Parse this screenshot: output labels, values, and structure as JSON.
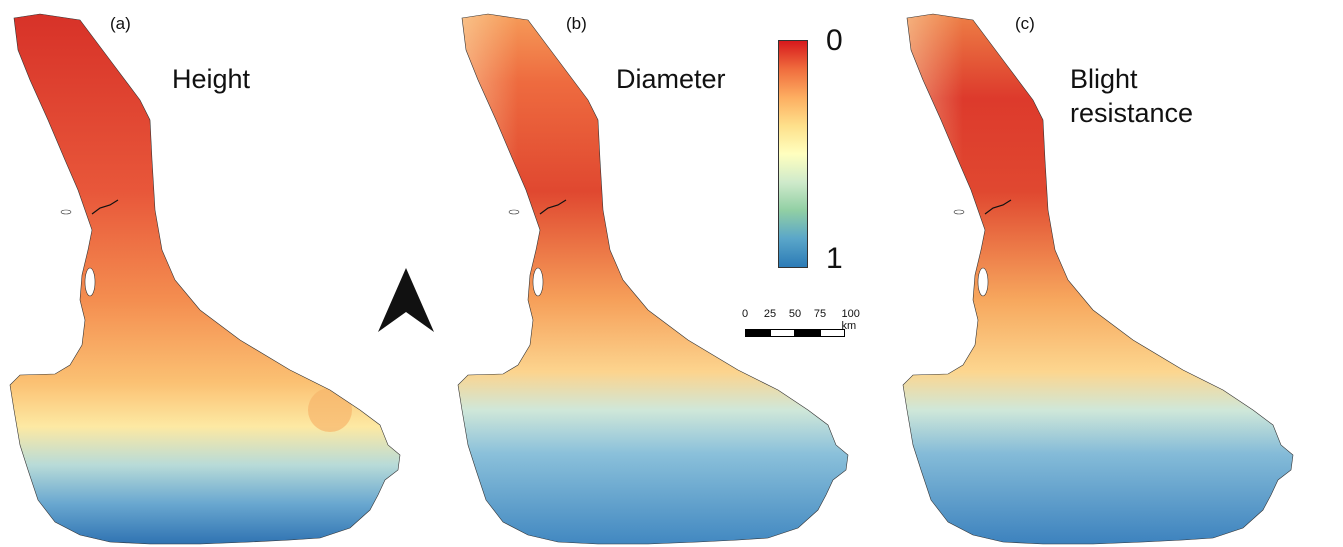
{
  "panels": [
    {
      "label": "(a)",
      "title": "Height",
      "variable": "height"
    },
    {
      "label": "(b)",
      "title": "Diameter",
      "variable": "diameter"
    },
    {
      "label": "(c)",
      "title": "Blight\nresistance",
      "variable": "blight_resistance"
    }
  ],
  "legend": {
    "min_label": "0",
    "max_label": "1",
    "colors": [
      "#d7191c",
      "#f06d3e",
      "#fdae61",
      "#fee08b",
      "#ffffbf",
      "#cfeacb",
      "#91cfa4",
      "#5aa6c9",
      "#2c7bb6"
    ]
  },
  "scale_bar": {
    "ticks": [
      "0",
      "25",
      "50",
      "75",
      "100 km"
    ]
  },
  "north_arrow": {
    "icon": "north-arrow-icon"
  }
}
